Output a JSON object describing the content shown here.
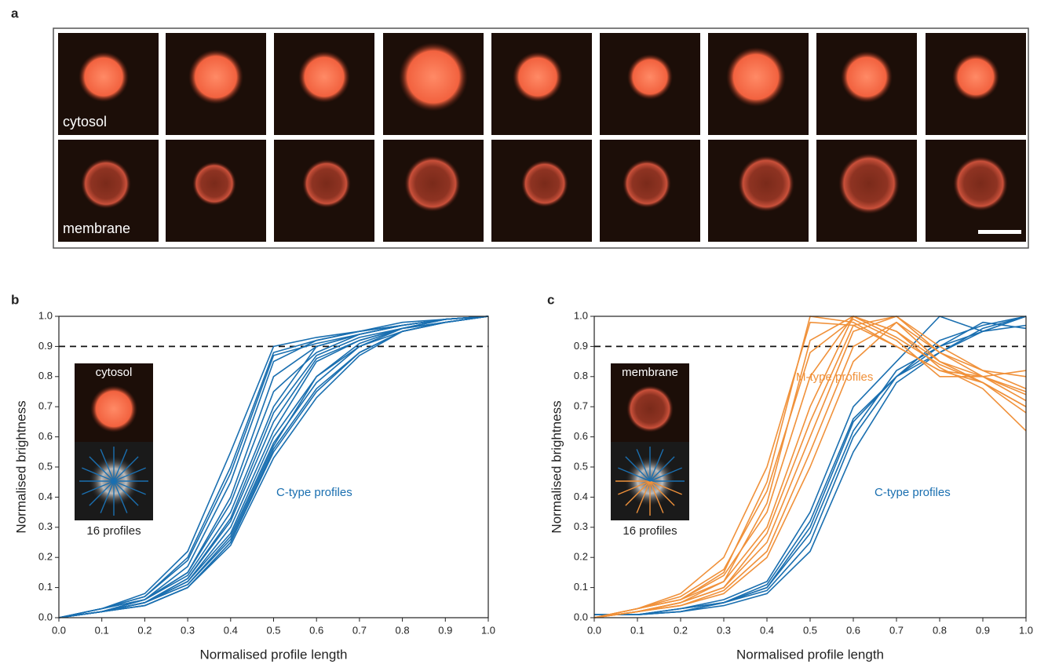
{
  "panel_a": {
    "label": "a",
    "rows": [
      "cytosol",
      "membrane"
    ]
  },
  "chart_data": [
    {
      "type": "line",
      "panel_label": "b",
      "xlabel": "Normalised profile length",
      "ylabel": "Normalised brightness",
      "x": [
        0,
        0.1,
        0.2,
        0.3,
        0.4,
        0.5,
        0.6,
        0.7,
        0.8,
        0.9,
        1
      ],
      "xlim": [
        0,
        1
      ],
      "ylim": [
        0,
        1
      ],
      "xticks": [
        {
          "value": 0,
          "label": "0.0"
        },
        0.1,
        0.2,
        0.3,
        0.4,
        0.5,
        0.6,
        0.7,
        0.8,
        0.9,
        {
          "value": 1,
          "label": "1.0"
        }
      ],
      "yticks": [
        {
          "value": 0,
          "label": "0.0"
        },
        0.1,
        0.2,
        0.3,
        0.4,
        0.5,
        0.6,
        0.7,
        0.8,
        0.9,
        {
          "value": 1,
          "label": "1.0"
        }
      ],
      "threshold": 0.9,
      "annotations": [
        {
          "text": "C-type profiles",
          "color": "#1a6fb0"
        }
      ],
      "inset": {
        "label": "cytosol",
        "caption": "16 profiles"
      },
      "series": [
        {
          "color": "#1a6fb0",
          "values": [
            0,
            0.03,
            0.07,
            0.2,
            0.5,
            0.88,
            0.92,
            0.95,
            0.97,
            0.99,
            1
          ]
        },
        {
          "color": "#1a6fb0",
          "values": [
            0,
            0.03,
            0.08,
            0.22,
            0.55,
            0.9,
            0.93,
            0.95,
            0.97,
            0.99,
            1
          ]
        },
        {
          "color": "#1a6fb0",
          "values": [
            0,
            0.02,
            0.06,
            0.17,
            0.45,
            0.85,
            0.92,
            0.95,
            0.98,
            0.99,
            1
          ]
        },
        {
          "color": "#1a6fb0",
          "values": [
            0,
            0.03,
            0.07,
            0.19,
            0.48,
            0.87,
            0.91,
            0.94,
            0.97,
            0.99,
            1
          ]
        },
        {
          "color": "#1a6fb0",
          "values": [
            0,
            0.02,
            0.06,
            0.15,
            0.4,
            0.8,
            0.9,
            0.94,
            0.97,
            0.99,
            1
          ]
        },
        {
          "color": "#1a6fb0",
          "values": [
            0,
            0.03,
            0.06,
            0.15,
            0.38,
            0.75,
            0.88,
            0.94,
            0.97,
            0.99,
            1
          ]
        },
        {
          "color": "#1a6fb0",
          "values": [
            0,
            0.02,
            0.05,
            0.13,
            0.33,
            0.68,
            0.87,
            0.93,
            0.96,
            0.99,
            1
          ]
        },
        {
          "color": "#1a6fb0",
          "values": [
            0,
            0.02,
            0.05,
            0.12,
            0.3,
            0.62,
            0.85,
            0.92,
            0.96,
            0.99,
            1
          ]
        },
        {
          "color": "#1a6fb0",
          "values": [
            0,
            0.02,
            0.05,
            0.12,
            0.28,
            0.6,
            0.8,
            0.9,
            0.96,
            0.98,
            1
          ]
        },
        {
          "color": "#1a6fb0",
          "values": [
            0,
            0.02,
            0.05,
            0.11,
            0.27,
            0.58,
            0.78,
            0.9,
            0.95,
            0.98,
            1
          ]
        },
        {
          "color": "#1a6fb0",
          "values": [
            0,
            0.02,
            0.04,
            0.1,
            0.25,
            0.55,
            0.75,
            0.88,
            0.95,
            0.98,
            1
          ]
        },
        {
          "color": "#1a6fb0",
          "values": [
            0,
            0.02,
            0.04,
            0.1,
            0.24,
            0.53,
            0.73,
            0.87,
            0.95,
            0.98,
            1
          ]
        },
        {
          "color": "#1a6fb0",
          "values": [
            0,
            0.02,
            0.05,
            0.11,
            0.26,
            0.57,
            0.8,
            0.91,
            0.96,
            0.98,
            1
          ]
        },
        {
          "color": "#1a6fb0",
          "values": [
            0,
            0.03,
            0.06,
            0.14,
            0.35,
            0.7,
            0.9,
            0.94,
            0.97,
            0.99,
            1
          ]
        },
        {
          "color": "#1a6fb0",
          "values": [
            0,
            0.02,
            0.05,
            0.13,
            0.32,
            0.65,
            0.86,
            0.92,
            0.96,
            0.99,
            1
          ]
        },
        {
          "color": "#1a6fb0",
          "values": [
            0,
            0.02,
            0.04,
            0.1,
            0.25,
            0.56,
            0.76,
            0.88,
            0.95,
            0.98,
            1
          ]
        }
      ]
    },
    {
      "type": "line",
      "panel_label": "c",
      "xlabel": "Normalised profile length",
      "ylabel": "Normalised brightness",
      "x": [
        0,
        0.1,
        0.2,
        0.3,
        0.4,
        0.5,
        0.6,
        0.7,
        0.8,
        0.9,
        1
      ],
      "xlim": [
        0,
        1
      ],
      "ylim": [
        0,
        1
      ],
      "xticks": [
        {
          "value": 0,
          "label": "0.0"
        },
        0.1,
        0.2,
        0.3,
        0.4,
        0.5,
        0.6,
        0.7,
        0.8,
        0.9,
        {
          "value": 1,
          "label": "1.0"
        }
      ],
      "yticks": [
        {
          "value": 0,
          "label": "0.0"
        },
        0.1,
        0.2,
        0.3,
        0.4,
        0.5,
        0.6,
        0.7,
        0.8,
        0.9,
        {
          "value": 1,
          "label": "1.0"
        }
      ],
      "threshold": 0.9,
      "annotations": [
        {
          "text": "M-type profiles",
          "color": "#f0913a"
        },
        {
          "text": "C-type profiles",
          "color": "#1a6fb0"
        }
      ],
      "inset": {
        "label": "membrane",
        "caption": "16 profiles"
      },
      "series": [
        {
          "color": "#1a6fb0",
          "values": [
            0.01,
            0.01,
            0.03,
            0.05,
            0.1,
            0.3,
            0.65,
            0.8,
            0.9,
            0.95,
            1
          ]
        },
        {
          "color": "#1a6fb0",
          "values": [
            0.01,
            0.01,
            0.02,
            0.05,
            0.09,
            0.25,
            0.6,
            0.8,
            0.92,
            0.97,
            1
          ]
        },
        {
          "color": "#1a6fb0",
          "values": [
            0.01,
            0.01,
            0.03,
            0.06,
            0.12,
            0.35,
            0.7,
            0.85,
            1,
            0.95,
            0.97
          ]
        },
        {
          "color": "#1a6fb0",
          "values": [
            0.01,
            0.01,
            0.02,
            0.04,
            0.08,
            0.22,
            0.55,
            0.78,
            0.88,
            0.95,
            1
          ]
        },
        {
          "color": "#1a6fb0",
          "values": [
            0.01,
            0.01,
            0.02,
            0.05,
            0.1,
            0.28,
            0.62,
            0.82,
            0.9,
            0.98,
            0.96
          ]
        },
        {
          "color": "#1a6fb0",
          "values": [
            0.01,
            0.01,
            0.03,
            0.05,
            0.11,
            0.32,
            0.66,
            0.8,
            0.88,
            0.96,
            1
          ]
        },
        {
          "color": "#f0913a",
          "values": [
            0,
            0.03,
            0.06,
            0.15,
            0.45,
            1,
            0.98,
            0.9,
            0.82,
            0.8,
            0.75
          ]
        },
        {
          "color": "#f0913a",
          "values": [
            0,
            0.02,
            0.05,
            0.12,
            0.38,
            0.92,
            1,
            0.95,
            0.85,
            0.8,
            0.72
          ]
        },
        {
          "color": "#f0913a",
          "values": [
            0,
            0.03,
            0.08,
            0.2,
            0.5,
            0.98,
            0.97,
            0.9,
            0.82,
            0.78,
            0.7
          ]
        },
        {
          "color": "#f0913a",
          "values": [
            0,
            0.02,
            0.05,
            0.1,
            0.25,
            0.6,
            0.95,
            1,
            0.88,
            0.82,
            0.76
          ]
        },
        {
          "color": "#f0913a",
          "values": [
            0,
            0.02,
            0.04,
            0.09,
            0.22,
            0.55,
            0.9,
            0.98,
            0.85,
            0.78,
            0.68
          ]
        },
        {
          "color": "#f0913a",
          "values": [
            0,
            0.03,
            0.06,
            0.12,
            0.3,
            0.7,
            1,
            0.95,
            0.83,
            0.76,
            0.62
          ]
        },
        {
          "color": "#f0913a",
          "values": [
            0,
            0.02,
            0.05,
            0.1,
            0.28,
            0.65,
            0.97,
            1,
            0.9,
            0.82,
            0.8
          ]
        },
        {
          "color": "#f0913a",
          "values": [
            0,
            0.03,
            0.07,
            0.16,
            0.42,
            0.88,
            0.99,
            0.92,
            0.8,
            0.8,
            0.82
          ]
        },
        {
          "color": "#f0913a",
          "values": [
            0,
            0.02,
            0.04,
            0.08,
            0.2,
            0.5,
            0.85,
            0.98,
            0.88,
            0.8,
            0.74
          ]
        },
        {
          "color": "#f0913a",
          "values": [
            0,
            0.03,
            0.06,
            0.14,
            0.35,
            0.8,
            1,
            0.93,
            0.84,
            0.78,
            0.7
          ]
        }
      ]
    }
  ]
}
